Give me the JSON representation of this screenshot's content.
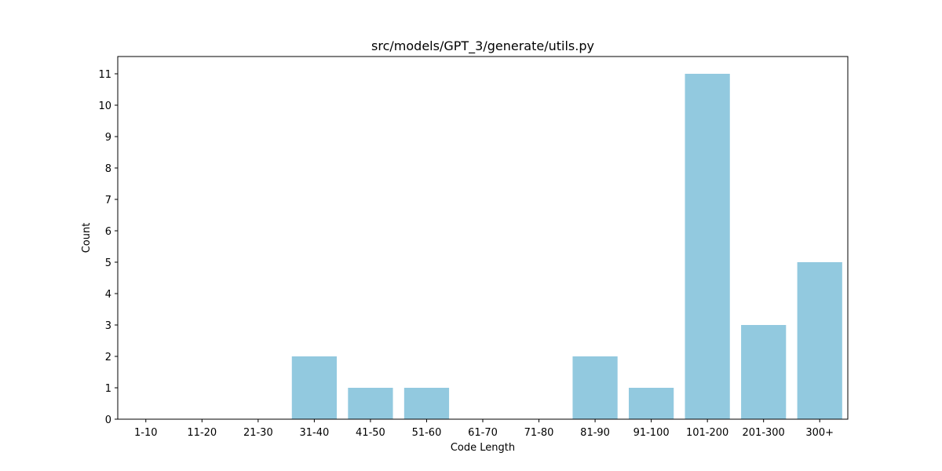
{
  "chart_data": {
    "type": "bar",
    "title": "src/models/GPT_3/generate/utils.py",
    "xlabel": "Code Length",
    "ylabel": "Count",
    "categories": [
      "1-10",
      "11-20",
      "21-30",
      "31-40",
      "41-50",
      "51-60",
      "61-70",
      "71-80",
      "81-90",
      "91-100",
      "101-200",
      "201-300",
      "300+"
    ],
    "values": [
      0,
      0,
      0,
      2,
      1,
      1,
      0,
      0,
      2,
      1,
      11,
      3,
      5
    ],
    "yticks": [
      0,
      1,
      2,
      3,
      4,
      5,
      6,
      7,
      8,
      9,
      10,
      11
    ],
    "ylim": [
      0,
      11.55
    ],
    "grid": false,
    "bar_color": "#92c9df"
  }
}
